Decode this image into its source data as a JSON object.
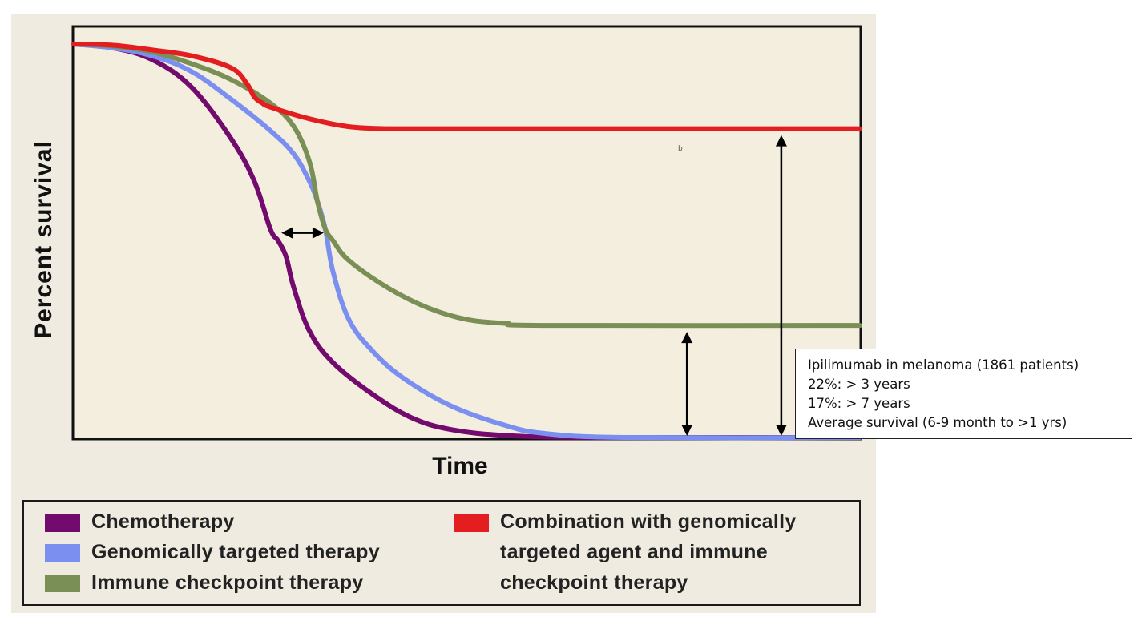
{
  "chart_data": {
    "type": "line",
    "title": "",
    "xlabel": "Time",
    "ylabel": "Percent survival",
    "xlim": [
      0,
      100
    ],
    "ylim": [
      0,
      100
    ],
    "grid": false,
    "series": [
      {
        "name": "Chemotherapy",
        "color": "#730a6e",
        "x": [
          0,
          5,
          10,
          15,
          20,
          23,
          25,
          26,
          27,
          28,
          30,
          33,
          38,
          43,
          48,
          55,
          65,
          80,
          100
        ],
        "y": [
          100,
          99,
          96,
          89,
          76,
          65,
          53,
          50,
          46,
          38,
          27,
          19,
          11,
          5,
          2,
          0.5,
          0,
          0,
          0
        ]
      },
      {
        "name": "Genomically targeted therapy",
        "color": "#7a8ff0",
        "x": [
          0,
          5,
          10,
          15,
          20,
          25,
          28,
          30,
          31,
          32,
          33,
          35,
          38,
          42,
          48,
          55,
          60,
          70,
          100
        ],
        "y": [
          100,
          99,
          97,
          93,
          86,
          78,
          72,
          65,
          60,
          53,
          42,
          30,
          22,
          15,
          8,
          3,
          1,
          0,
          0
        ]
      },
      {
        "name": "Immune checkpoint therapy",
        "color": "#7a8f55",
        "x": [
          0,
          5,
          10,
          15,
          20,
          25,
          28,
          30,
          31,
          32,
          33,
          35,
          40,
          45,
          50,
          55,
          60,
          100
        ],
        "y": [
          100,
          99.5,
          98,
          95,
          91,
          85,
          79,
          70,
          60,
          53,
          50,
          45,
          38,
          33,
          30,
          29,
          28.5,
          28.5
        ]
      },
      {
        "name": "Combination with genomically targeted agent and immune checkpoint therapy",
        "color": "#e41d21",
        "x": [
          0,
          5,
          10,
          15,
          20,
          22,
          23,
          24,
          25,
          30,
          35,
          40,
          45,
          100
        ],
        "y": [
          100,
          99.7,
          98.5,
          97,
          94,
          90,
          86.5,
          85,
          84,
          81,
          79,
          78.5,
          78.5,
          78.5
        ]
      }
    ],
    "annotations": {
      "horizontal_arrow": {
        "x_from": 26,
        "x_to": 32,
        "y": 52
      },
      "vertical_arrow_immune": {
        "x": 78,
        "y_from": 0,
        "y_to": 28.5
      },
      "vertical_arrow_combo": {
        "x": 90,
        "y_from": 0,
        "y_to": 78.5
      }
    }
  },
  "legend": {
    "items": [
      {
        "label": "Chemotherapy",
        "color": "#730a6e"
      },
      {
        "label": "Genomically targeted therapy",
        "color": "#7a8ff0"
      },
      {
        "label": "Immune checkpoint therapy",
        "color": "#7a8f55"
      },
      {
        "label_lines": [
          "Combination with genomically",
          "targeted agent and immune",
          "checkpoint therapy"
        ],
        "color": "#e41d21"
      }
    ]
  },
  "annotation_box": {
    "lines": [
      "Ipilimumab in melanoma (1861 patients)",
      "22%: > 3 years",
      "17%: > 7 years",
      "Average survival (6-9 month to >1 yrs)"
    ]
  },
  "stray_mark": "b"
}
